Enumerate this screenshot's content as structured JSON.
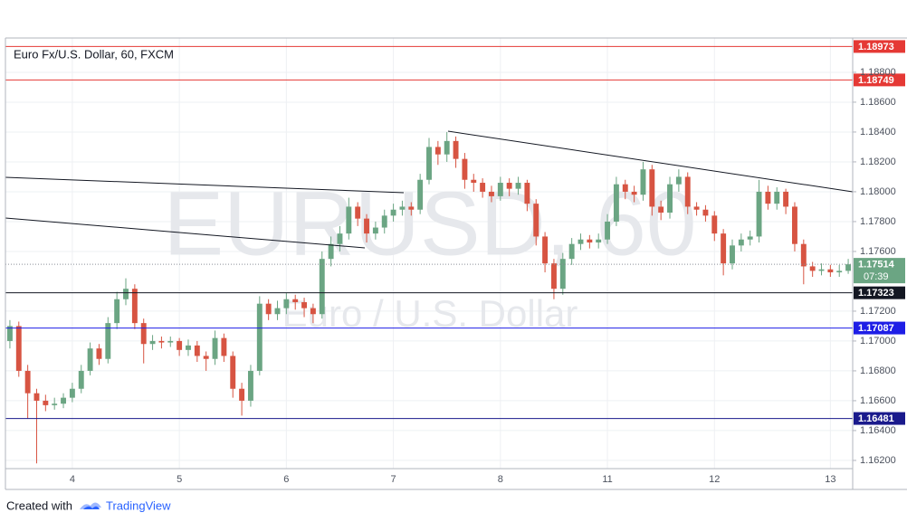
{
  "chart_data": {
    "type": "candlestick",
    "title": "Euro Fx/U.S. Dollar, 60, FXCM",
    "watermark": "EURUSD, 60",
    "watermark_subtitle": "Euro / U.S. Dollar",
    "categories": [
      null,
      null,
      null,
      null,
      null,
      null,
      null,
      "4",
      null,
      null,
      null,
      null,
      null,
      null,
      null,
      null,
      null,
      null,
      null,
      "5",
      null,
      null,
      null,
      null,
      null,
      null,
      null,
      null,
      null,
      null,
      null,
      "6",
      null,
      null,
      null,
      null,
      null,
      null,
      null,
      null,
      null,
      null,
      null,
      "7",
      null,
      null,
      null,
      null,
      null,
      null,
      null,
      null,
      null,
      null,
      null,
      "8",
      null,
      null,
      null,
      null,
      null,
      null,
      null,
      null,
      null,
      null,
      null,
      "11",
      null,
      null,
      null,
      null,
      null,
      null,
      null,
      null,
      null,
      null,
      null,
      "12",
      null,
      null,
      null,
      null,
      null,
      null,
      null,
      null,
      null,
      null,
      null,
      null,
      "13",
      null,
      null
    ],
    "series": [
      {
        "open": [
          1.17,
          1.171,
          1.168,
          1.1665,
          1.166,
          1.1657,
          1.1658,
          1.1662,
          1.1668,
          1.168,
          1.1695,
          1.1688,
          1.1712,
          1.1728,
          1.1735,
          1.1712,
          1.1698,
          1.17,
          1.1699,
          1.17,
          1.1694,
          1.1697,
          1.169,
          1.1688,
          1.1702,
          1.169,
          1.1668,
          1.166,
          1.168,
          1.1725,
          1.1718,
          1.1722,
          1.1728,
          1.1726,
          1.1722,
          1.1718,
          1.1755,
          1.1765,
          1.1772,
          1.179,
          1.1782,
          1.1772,
          1.1776,
          1.1784,
          1.1788,
          1.179,
          1.1788,
          1.1808,
          1.183,
          1.1825,
          1.1834,
          1.1822,
          1.1808,
          1.1806,
          1.18,
          1.1797,
          1.1806,
          1.1802,
          1.1806,
          1.1792,
          1.177,
          1.1752,
          1.1735,
          1.1755,
          1.1765,
          1.1768,
          1.1766,
          1.1768,
          1.178,
          1.1805,
          1.18,
          1.1798,
          1.1815,
          1.179,
          1.1786,
          1.1805,
          1.181,
          1.179,
          1.1788,
          1.1784,
          1.1772,
          1.1752,
          1.1764,
          1.1768,
          1.177,
          1.18,
          1.1792,
          1.18,
          1.179,
          1.1765,
          1.175,
          1.1747,
          1.1748,
          1.1746,
          1.1747
        ],
        "high": [
          1.1714,
          1.1713,
          1.1684,
          1.1668,
          1.1664,
          1.1662,
          1.1665,
          1.1672,
          1.1684,
          1.1699,
          1.1698,
          1.1716,
          1.1733,
          1.1742,
          1.1738,
          1.1715,
          1.1704,
          1.1703,
          1.1703,
          1.1702,
          1.1701,
          1.17,
          1.1693,
          1.1707,
          1.1705,
          1.1693,
          1.1672,
          1.1684,
          1.173,
          1.1728,
          1.1727,
          1.1732,
          1.1731,
          1.1729,
          1.1725,
          1.176,
          1.177,
          1.1777,
          1.1796,
          1.1793,
          1.1785,
          1.178,
          1.1788,
          1.1792,
          1.1794,
          1.1793,
          1.1812,
          1.1836,
          1.1834,
          1.184,
          1.1837,
          1.1826,
          1.1812,
          1.1809,
          1.1804,
          1.181,
          1.1809,
          1.181,
          1.1808,
          1.1795,
          1.1773,
          1.1755,
          1.1759,
          1.1769,
          1.1772,
          1.1771,
          1.1772,
          1.1785,
          1.181,
          1.1808,
          1.1804,
          1.182,
          1.1818,
          1.1794,
          1.181,
          1.1815,
          1.1813,
          1.1793,
          1.1791,
          1.1787,
          1.1775,
          1.1768,
          1.1772,
          1.1774,
          1.1808,
          1.1804,
          1.1803,
          1.1802,
          1.1793,
          1.1768,
          1.1753,
          1.1752,
          1.1751,
          1.1751,
          1.1755
        ],
        "low": [
          1.1695,
          1.1676,
          1.1648,
          1.1618,
          1.1653,
          1.1654,
          1.1655,
          1.1659,
          1.1665,
          1.1677,
          1.1684,
          1.1685,
          1.1708,
          1.1724,
          1.1708,
          1.1685,
          1.1694,
          1.1695,
          1.1696,
          1.169,
          1.169,
          1.1686,
          1.168,
          1.1684,
          1.1686,
          1.1662,
          1.165,
          1.1656,
          1.1677,
          1.1714,
          1.1714,
          1.1718,
          1.1721,
          1.1716,
          1.1712,
          1.1715,
          1.175,
          1.176,
          1.1768,
          1.1777,
          1.1766,
          1.1768,
          1.1772,
          1.178,
          1.1784,
          1.1784,
          1.1785,
          1.1805,
          1.1818,
          1.182,
          1.1816,
          1.1802,
          1.18,
          1.1796,
          1.1793,
          1.1794,
          1.1797,
          1.1798,
          1.1787,
          1.1764,
          1.1746,
          1.1728,
          1.1731,
          1.1751,
          1.1761,
          1.1762,
          1.1762,
          1.1765,
          1.1777,
          1.1795,
          1.1793,
          1.1794,
          1.1784,
          1.1781,
          1.1782,
          1.18,
          1.1785,
          1.1784,
          1.178,
          1.1767,
          1.1744,
          1.1748,
          1.176,
          1.1764,
          1.1766,
          1.1788,
          1.1788,
          1.1785,
          1.176,
          1.1738,
          1.1743,
          1.1744,
          1.1743,
          1.1743,
          1.1745
        ],
        "close": [
          1.171,
          1.168,
          1.1665,
          1.166,
          1.1657,
          1.1658,
          1.1662,
          1.1668,
          1.168,
          1.1695,
          1.1688,
          1.1712,
          1.1728,
          1.1735,
          1.1712,
          1.1698,
          1.17,
          1.1699,
          1.17,
          1.1694,
          1.1697,
          1.169,
          1.1688,
          1.1702,
          1.169,
          1.1668,
          1.166,
          1.168,
          1.1725,
          1.1718,
          1.1722,
          1.1728,
          1.1726,
          1.1722,
          1.1718,
          1.1755,
          1.1765,
          1.1772,
          1.179,
          1.1782,
          1.1772,
          1.1776,
          1.1784,
          1.1788,
          1.179,
          1.1788,
          1.1808,
          1.183,
          1.1825,
          1.1834,
          1.1822,
          1.1808,
          1.1806,
          1.18,
          1.1797,
          1.1806,
          1.1802,
          1.1806,
          1.1792,
          1.177,
          1.1752,
          1.1735,
          1.1755,
          1.1765,
          1.1768,
          1.1766,
          1.1768,
          1.178,
          1.1805,
          1.18,
          1.1798,
          1.1815,
          1.179,
          1.1786,
          1.1805,
          1.181,
          1.179,
          1.1788,
          1.1784,
          1.1772,
          1.1752,
          1.1764,
          1.1768,
          1.177,
          1.18,
          1.1792,
          1.18,
          1.179,
          1.1765,
          1.175,
          1.1747,
          1.1748,
          1.1746,
          1.1747,
          1.17514
        ]
      }
    ],
    "up_color": "#6ba583",
    "down_color": "#d75442",
    "ylim": [
      1.16145,
      1.1903
    ],
    "yticks": [
      {
        "value": 1.162,
        "label": "1.16200"
      },
      {
        "value": 1.164,
        "label": "1.16400"
      },
      {
        "value": 1.166,
        "label": "1.16600"
      },
      {
        "value": 1.168,
        "label": "1.16800"
      },
      {
        "value": 1.17,
        "label": "1.17000"
      },
      {
        "value": 1.172,
        "label": "1.17200"
      },
      {
        "value": 1.176,
        "label": "1.17600"
      },
      {
        "value": 1.178,
        "label": "1.17800"
      },
      {
        "value": 1.18,
        "label": "1.18000"
      },
      {
        "value": 1.182,
        "label": "1.18200"
      },
      {
        "value": 1.184,
        "label": "1.18400"
      },
      {
        "value": 1.186,
        "label": "1.18600"
      },
      {
        "value": 1.188,
        "label": "1.18800"
      }
    ],
    "grid": true,
    "price_lines": [
      {
        "value": 1.18973,
        "color": "#e53935"
      },
      {
        "value": 1.18749,
        "color": "#e53935"
      },
      {
        "value": 1.17323,
        "color": "#131722"
      },
      {
        "value": 1.17087,
        "color": "#1e1ee6"
      },
      {
        "value": 1.16481,
        "color": "#1a1a8c"
      }
    ],
    "last_price": {
      "value": 1.17514,
      "color": "#6ba583",
      "countdown": "07:39"
    }
  },
  "footer": {
    "text": "Created with",
    "brand": "TradingView"
  }
}
